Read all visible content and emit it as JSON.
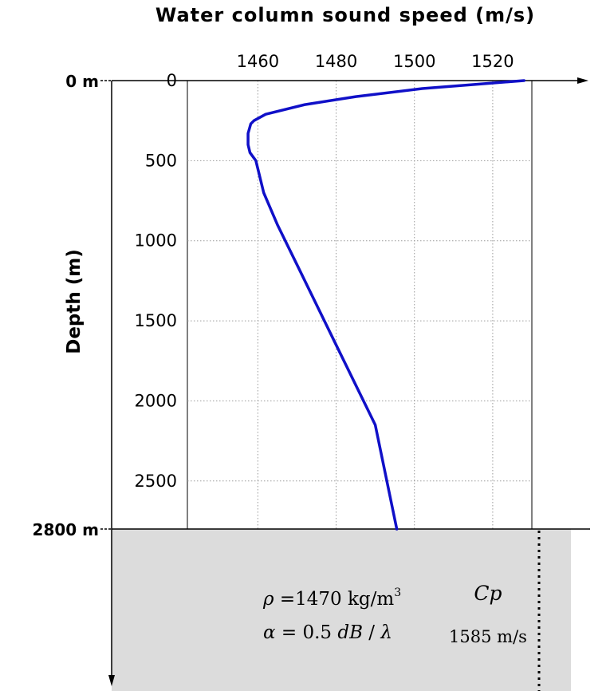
{
  "chart_data": {
    "type": "line",
    "title": "Water column sound speed (m/s)",
    "xlabel": "",
    "ylabel": "Depth (m)",
    "xlim": [
      1442,
      1530
    ],
    "ylim": [
      0,
      2800
    ],
    "y_inverted": true,
    "grid": true,
    "xticks": [
      1460,
      1480,
      1500,
      1520
    ],
    "yticks": [
      0,
      500,
      1000,
      1500,
      2000,
      2500
    ],
    "series": [
      {
        "color": "#1010c8",
        "x": [
          1528,
          1515,
          1502,
          1485,
          1472,
          1462,
          1459,
          1458.2,
          1457.5,
          1457.5,
          1458,
          1459.5,
          1460.5,
          1461.5,
          1465,
          1470,
          1480,
          1490,
          1495.5
        ],
        "y": [
          0,
          25,
          50,
          100,
          150,
          210,
          250,
          270,
          330,
          400,
          450,
          500,
          600,
          700,
          900,
          1150,
          1650,
          2150,
          2800
        ]
      }
    ]
  },
  "annotations": {
    "top_depth": "0 m",
    "bottom_depth": "2800 m",
    "density_symbol": "ρ",
    "density_eq": " =1470 kg/m",
    "density_exp": "3",
    "atten_symbol": "α",
    "atten_eq": " = 0.5 ",
    "atten_unit": "dB",
    "atten_sep": " / ",
    "atten_lambda": "λ",
    "cp_label": "Cp",
    "cp_value": "1585 m/s"
  },
  "colors": {
    "curve": "#1010c8",
    "seabed": "#dcdcdc",
    "grid": "#9a9a9a",
    "axis": "#000000"
  }
}
